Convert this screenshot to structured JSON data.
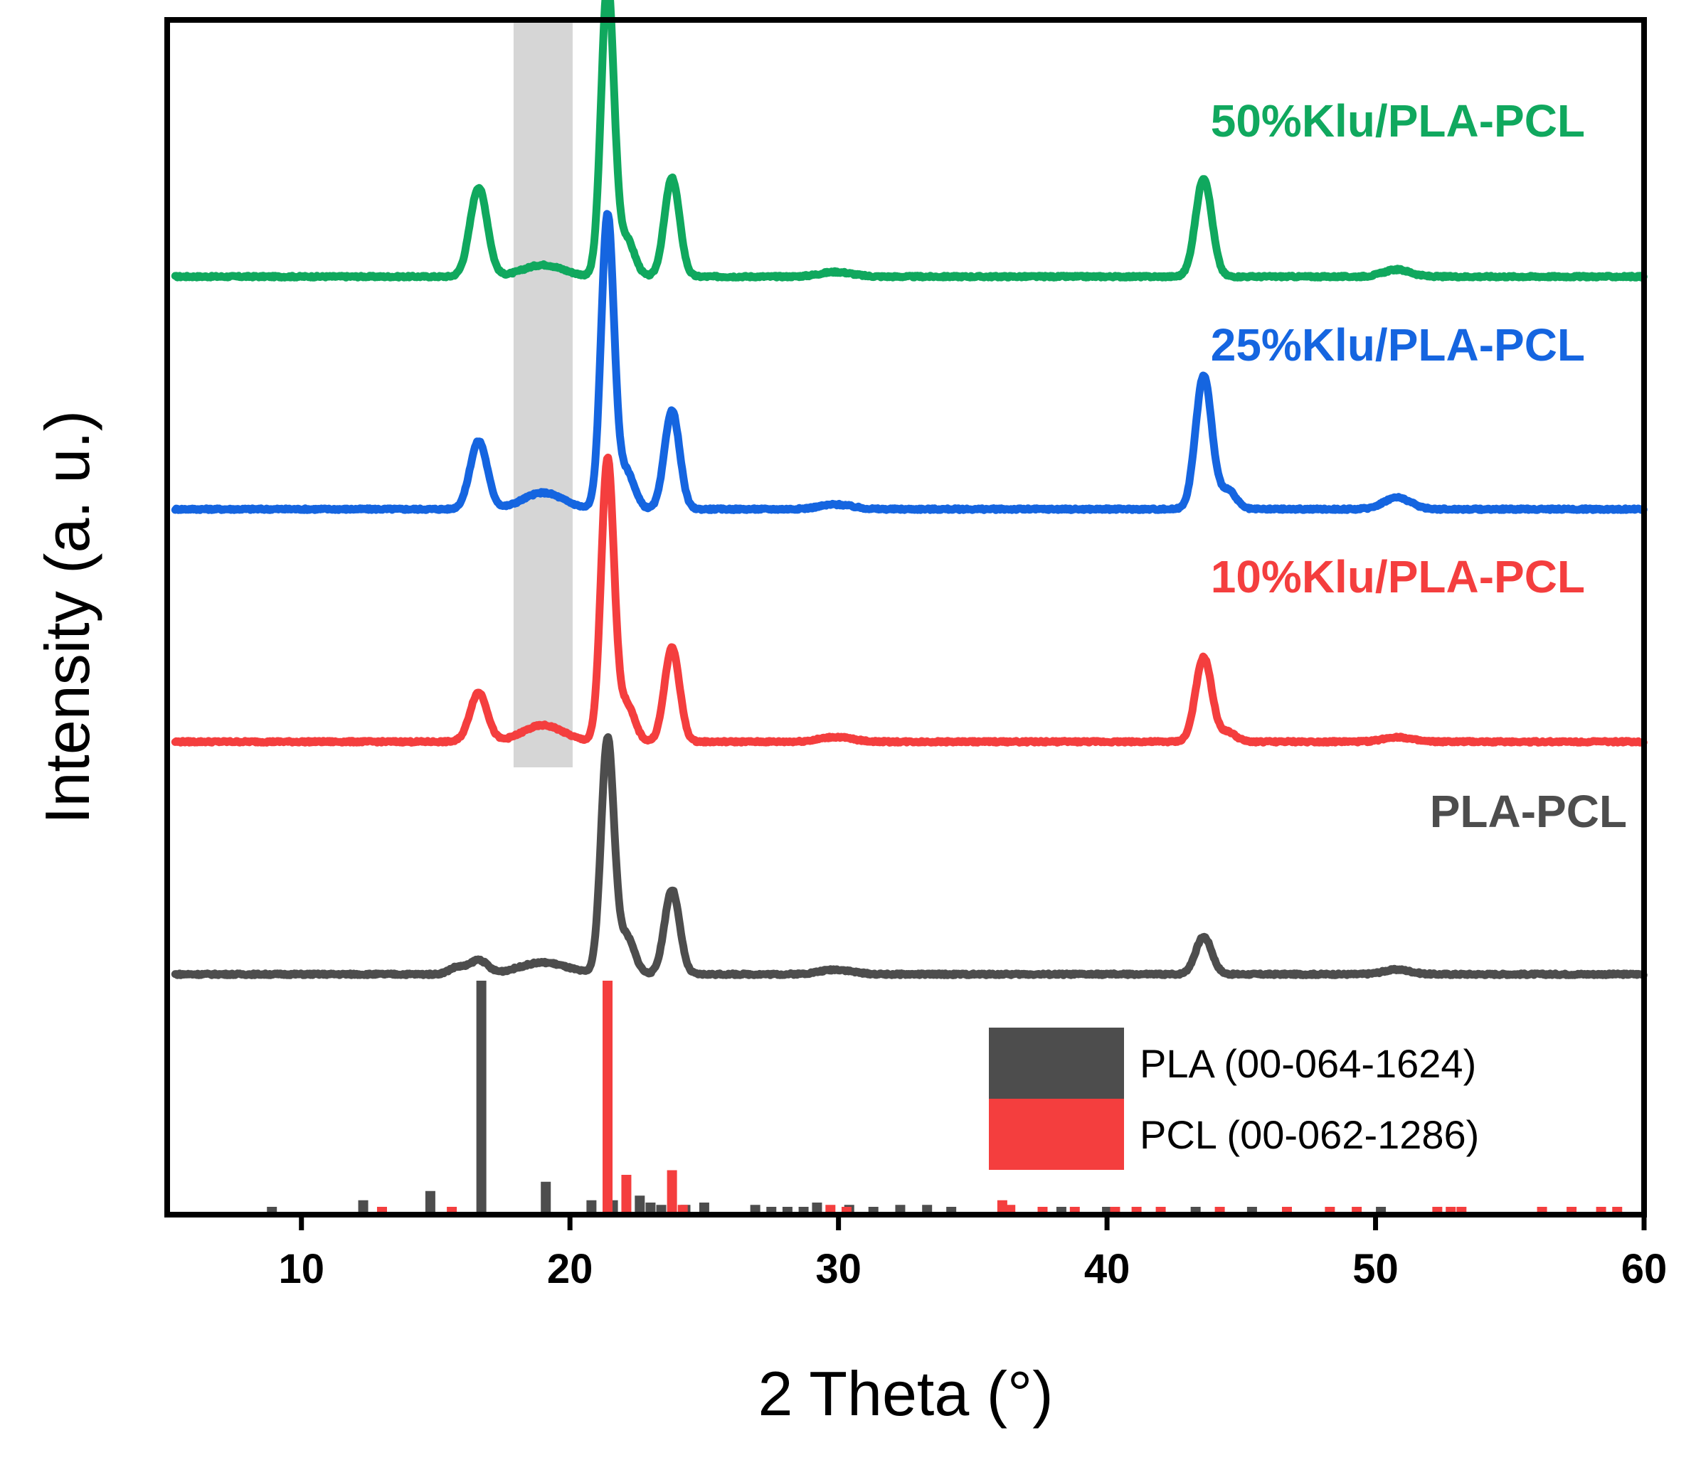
{
  "chart_data": {
    "type": "line",
    "title": "",
    "xlabel": "2 Theta (°)",
    "ylabel": "Intensity (a. u.)",
    "xlim": [
      5,
      60
    ],
    "x_ticks": [
      10,
      20,
      30,
      40,
      50,
      60
    ],
    "x_tick_labels": [
      "10",
      "20",
      "30",
      "40",
      "50",
      "60"
    ],
    "highlight_band": {
      "x_range": [
        17.9,
        20.1
      ],
      "color": "#cfcfcf"
    },
    "series": [
      {
        "name": "50%Klu/PLA-PCL",
        "color": "#10a85e",
        "offset": 3,
        "peaks": [
          {
            "x": 16.6,
            "height": 0.38,
            "width": 0.32
          },
          {
            "x": 19.0,
            "height": 0.05,
            "width": 0.75
          },
          {
            "x": 21.4,
            "height": 1.25,
            "width": 0.24
          },
          {
            "x": 22.1,
            "height": 0.16,
            "width": 0.3
          },
          {
            "x": 23.8,
            "height": 0.42,
            "width": 0.28
          },
          {
            "x": 29.9,
            "height": 0.02,
            "width": 0.6
          },
          {
            "x": 43.6,
            "height": 0.42,
            "width": 0.3
          },
          {
            "x": 50.8,
            "height": 0.03,
            "width": 0.5
          }
        ]
      },
      {
        "name": "25%Klu/PLA-PCL",
        "color": "#1565e0",
        "offset": 2,
        "peaks": [
          {
            "x": 16.6,
            "height": 0.29,
            "width": 0.32
          },
          {
            "x": 19.0,
            "height": 0.07,
            "width": 0.75
          },
          {
            "x": 21.4,
            "height": 1.25,
            "width": 0.24
          },
          {
            "x": 22.1,
            "height": 0.16,
            "width": 0.3
          },
          {
            "x": 23.8,
            "height": 0.42,
            "width": 0.28
          },
          {
            "x": 29.9,
            "height": 0.02,
            "width": 0.6
          },
          {
            "x": 43.6,
            "height": 0.57,
            "width": 0.3
          },
          {
            "x": 44.5,
            "height": 0.08,
            "width": 0.3
          },
          {
            "x": 50.8,
            "height": 0.05,
            "width": 0.5
          }
        ]
      },
      {
        "name": "10%Klu/PLA-PCL",
        "color": "#f43e3e",
        "offset": 1,
        "peaks": [
          {
            "x": 16.6,
            "height": 0.21,
            "width": 0.32
          },
          {
            "x": 19.0,
            "height": 0.07,
            "width": 0.75
          },
          {
            "x": 21.4,
            "height": 1.2,
            "width": 0.24
          },
          {
            "x": 22.1,
            "height": 0.16,
            "width": 0.3
          },
          {
            "x": 23.8,
            "height": 0.4,
            "width": 0.28
          },
          {
            "x": 29.9,
            "height": 0.02,
            "width": 0.6
          },
          {
            "x": 43.6,
            "height": 0.36,
            "width": 0.3
          },
          {
            "x": 44.5,
            "height": 0.04,
            "width": 0.3
          },
          {
            "x": 50.8,
            "height": 0.02,
            "width": 0.5
          }
        ]
      },
      {
        "name": "PLA-PCL",
        "color": "#4d4d4d",
        "offset": 0,
        "peaks": [
          {
            "x": 15.8,
            "height": 0.03,
            "width": 0.3
          },
          {
            "x": 16.6,
            "height": 0.06,
            "width": 0.32
          },
          {
            "x": 19.0,
            "height": 0.05,
            "width": 0.9
          },
          {
            "x": 21.4,
            "height": 1.0,
            "width": 0.24
          },
          {
            "x": 22.1,
            "height": 0.16,
            "width": 0.3
          },
          {
            "x": 23.8,
            "height": 0.36,
            "width": 0.28
          },
          {
            "x": 29.9,
            "height": 0.02,
            "width": 0.6
          },
          {
            "x": 43.6,
            "height": 0.16,
            "width": 0.3
          },
          {
            "x": 50.8,
            "height": 0.02,
            "width": 0.5
          }
        ]
      }
    ],
    "reference_patterns": [
      {
        "name": "PLA (00-064-1624)",
        "color": "#4d4d4d",
        "lines": [
          [
            8.9,
            0.02
          ],
          [
            12.3,
            0.05
          ],
          [
            14.8,
            0.09
          ],
          [
            16.7,
            1.0
          ],
          [
            19.1,
            0.13
          ],
          [
            20.8,
            0.05
          ],
          [
            21.6,
            0.05
          ],
          [
            22.6,
            0.07
          ],
          [
            23.0,
            0.04
          ],
          [
            23.4,
            0.03
          ],
          [
            24.3,
            0.03
          ],
          [
            25.0,
            0.04
          ],
          [
            26.9,
            0.03
          ],
          [
            27.5,
            0.02
          ],
          [
            28.1,
            0.02
          ],
          [
            28.7,
            0.02
          ],
          [
            29.2,
            0.04
          ],
          [
            30.4,
            0.03
          ],
          [
            31.3,
            0.02
          ],
          [
            32.3,
            0.03
          ],
          [
            33.3,
            0.03
          ],
          [
            34.2,
            0.02
          ],
          [
            38.3,
            0.02
          ],
          [
            40.0,
            0.02
          ],
          [
            43.3,
            0.02
          ],
          [
            45.4,
            0.02
          ],
          [
            50.2,
            0.02
          ]
        ]
      },
      {
        "name": "PCL (00-062-1286)",
        "color": "#f43e3e",
        "lines": [
          [
            13.0,
            0.02
          ],
          [
            15.6,
            0.02
          ],
          [
            21.4,
            1.0
          ],
          [
            22.1,
            0.16
          ],
          [
            23.8,
            0.18
          ],
          [
            24.2,
            0.03
          ],
          [
            29.7,
            0.03
          ],
          [
            30.3,
            0.02
          ],
          [
            36.1,
            0.05
          ],
          [
            36.4,
            0.03
          ],
          [
            37.6,
            0.02
          ],
          [
            38.8,
            0.02
          ],
          [
            40.3,
            0.02
          ],
          [
            41.1,
            0.02
          ],
          [
            42.0,
            0.02
          ],
          [
            44.2,
            0.02
          ],
          [
            46.7,
            0.02
          ],
          [
            48.3,
            0.02
          ],
          [
            49.3,
            0.02
          ],
          [
            52.3,
            0.02
          ],
          [
            52.8,
            0.02
          ],
          [
            53.2,
            0.02
          ],
          [
            56.2,
            0.02
          ],
          [
            57.3,
            0.02
          ],
          [
            58.4,
            0.02
          ],
          [
            59.0,
            0.02
          ]
        ]
      }
    ],
    "legend": {
      "placement": "bottom-right"
    }
  }
}
